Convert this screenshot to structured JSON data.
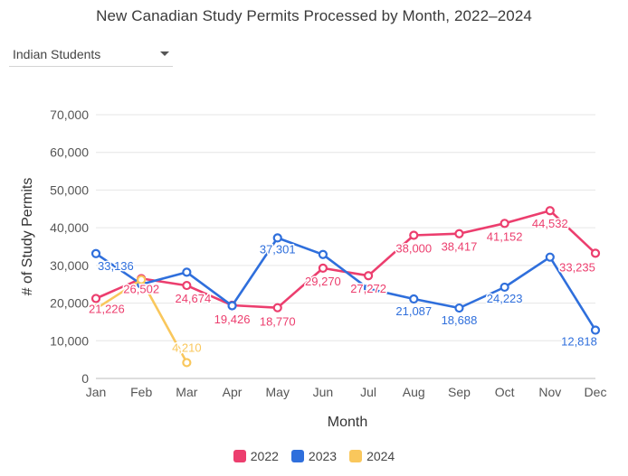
{
  "chart_data": {
    "type": "line",
    "title": "New Canadian Study Permits Processed by Month, 2022–2024",
    "xlabel": "Month",
    "ylabel": "# of Study Permits",
    "categories": [
      "Jan",
      "Feb",
      "Mar",
      "Apr",
      "May",
      "Jun",
      "Jul",
      "Aug",
      "Sep",
      "Oct",
      "Nov",
      "Dec"
    ],
    "ylim": [
      0,
      70000
    ],
    "yticks": [
      "0",
      "10,000",
      "20,000",
      "30,000",
      "40,000",
      "50,000",
      "60,000",
      "70,000"
    ],
    "grid": true,
    "legend_position": "bottom-center",
    "series": [
      {
        "name": "2022",
        "color": "#ec3e6e",
        "values": [
          21226,
          26502,
          24674,
          19426,
          18770,
          29270,
          27272,
          38000,
          38417,
          41152,
          44532,
          33235
        ],
        "labels": [
          "21,226",
          "26,502",
          "24,674",
          "19,426",
          "18,770",
          "29,270",
          "27,272",
          "38,000",
          "38,417",
          "41,152",
          "44,532",
          "33,235"
        ]
      },
      {
        "name": "2023",
        "color": "#2f6fdc",
        "values": [
          33136,
          25000,
          28200,
          19300,
          37301,
          32900,
          23800,
          21087,
          18688,
          24223,
          32200,
          12818
        ],
        "labels": [
          "33,136",
          null,
          null,
          null,
          "37,301",
          null,
          null,
          "21,087",
          "18,688",
          "24,223",
          null,
          "12,818"
        ]
      },
      {
        "name": "2024",
        "color": "#f9c75c",
        "values": [
          18500,
          26200,
          4210,
          null,
          null,
          null,
          null,
          null,
          null,
          null,
          null,
          null
        ],
        "labels": [
          null,
          null,
          "4,210",
          null,
          null,
          null,
          null,
          null,
          null,
          null,
          null,
          null
        ]
      }
    ]
  },
  "selector": {
    "value": "Indian Students",
    "icon": "chevron-down-icon"
  }
}
